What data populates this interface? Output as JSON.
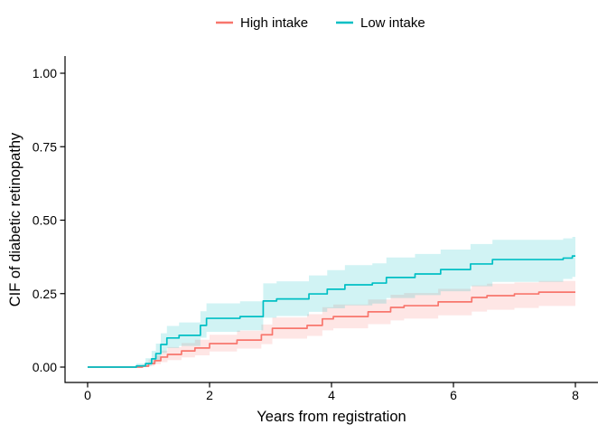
{
  "figure": {
    "background": "#ffffff",
    "legend": {
      "items": [
        {
          "label": "High intake",
          "color": "#F8766D"
        },
        {
          "label": "Low intake",
          "color": "#00BFC4"
        }
      ]
    },
    "axes": {
      "x": {
        "title": "Years from registration",
        "tick_labels": [
          "0",
          "2",
          "4",
          "6",
          "8"
        ],
        "tick_values": [
          0,
          2,
          4,
          6,
          8
        ],
        "range": [
          0,
          8.1
        ]
      },
      "y": {
        "title": "CIF of diabetic retinopathy",
        "tick_labels": [
          "0.00",
          "0.25",
          "0.50",
          "0.75",
          "1.00"
        ],
        "tick_values": [
          0,
          0.25,
          0.5,
          0.75,
          1
        ],
        "range": [
          0,
          1.05
        ]
      }
    }
  },
  "chart_data": {
    "type": "line",
    "subtype": "step-function-with-confidence-band",
    "title": "",
    "xlabel": "Years from registration",
    "ylabel": "CIF of diabetic retinopathy",
    "xlim": [
      0,
      8.1
    ],
    "ylim": [
      0,
      1.05
    ],
    "x_ticks": [
      0,
      2,
      4,
      6,
      8
    ],
    "y_ticks": [
      0,
      0.25,
      0.5,
      0.75,
      1.0
    ],
    "grid": false,
    "legend_position": "top",
    "x_end": 8.0,
    "series": [
      {
        "name": "High intake",
        "color": "#F8766D",
        "band_color": "rgba(248,118,109,0.18)",
        "points_format": [
          "t_years",
          "cif",
          "ci_lower",
          "ci_upper"
        ],
        "points": [
          [
            0.0,
            0.0,
            0.0,
            0.0
          ],
          [
            0.9,
            0.003,
            0.0,
            0.01
          ],
          [
            1.0,
            0.012,
            0.004,
            0.026
          ],
          [
            1.1,
            0.022,
            0.01,
            0.04
          ],
          [
            1.2,
            0.034,
            0.017,
            0.056
          ],
          [
            1.31,
            0.043,
            0.024,
            0.068
          ],
          [
            1.54,
            0.055,
            0.033,
            0.082
          ],
          [
            1.76,
            0.065,
            0.04,
            0.093
          ],
          [
            2.0,
            0.08,
            0.053,
            0.11
          ],
          [
            2.45,
            0.092,
            0.063,
            0.124
          ],
          [
            2.85,
            0.11,
            0.078,
            0.145
          ],
          [
            3.03,
            0.132,
            0.097,
            0.169
          ],
          [
            3.6,
            0.142,
            0.106,
            0.18
          ],
          [
            3.85,
            0.164,
            0.125,
            0.204
          ],
          [
            4.03,
            0.172,
            0.132,
            0.213
          ],
          [
            4.6,
            0.188,
            0.146,
            0.23
          ],
          [
            4.97,
            0.203,
            0.159,
            0.246
          ],
          [
            5.19,
            0.209,
            0.165,
            0.252
          ],
          [
            5.75,
            0.222,
            0.176,
            0.266
          ],
          [
            6.3,
            0.237,
            0.189,
            0.278
          ],
          [
            6.55,
            0.243,
            0.195,
            0.284
          ],
          [
            7.0,
            0.249,
            0.201,
            0.288
          ],
          [
            7.4,
            0.255,
            0.208,
            0.293
          ]
        ]
      },
      {
        "name": "Low intake",
        "color": "#00BFC4",
        "band_color": "rgba(0,191,196,0.18)",
        "points_format": [
          "t_years",
          "cif",
          "ci_lower",
          "ci_upper"
        ],
        "points": [
          [
            0.0,
            0.0,
            0.0,
            0.0
          ],
          [
            0.8,
            0.004,
            0.001,
            0.012
          ],
          [
            0.95,
            0.012,
            0.004,
            0.03
          ],
          [
            1.05,
            0.028,
            0.012,
            0.055
          ],
          [
            1.12,
            0.046,
            0.024,
            0.08
          ],
          [
            1.2,
            0.077,
            0.048,
            0.115
          ],
          [
            1.3,
            0.099,
            0.065,
            0.14
          ],
          [
            1.5,
            0.108,
            0.072,
            0.152
          ],
          [
            1.85,
            0.142,
            0.1,
            0.19
          ],
          [
            1.95,
            0.166,
            0.12,
            0.217
          ],
          [
            2.5,
            0.172,
            0.125,
            0.224
          ],
          [
            2.88,
            0.225,
            0.168,
            0.285
          ],
          [
            3.1,
            0.232,
            0.174,
            0.292
          ],
          [
            3.63,
            0.249,
            0.188,
            0.312
          ],
          [
            3.93,
            0.265,
            0.2,
            0.33
          ],
          [
            4.22,
            0.28,
            0.21,
            0.347
          ],
          [
            4.67,
            0.286,
            0.216,
            0.353
          ],
          [
            4.9,
            0.305,
            0.235,
            0.373
          ],
          [
            5.37,
            0.317,
            0.245,
            0.385
          ],
          [
            5.79,
            0.332,
            0.258,
            0.4
          ],
          [
            6.28,
            0.351,
            0.275,
            0.419
          ],
          [
            6.64,
            0.366,
            0.29,
            0.433
          ],
          [
            7.8,
            0.371,
            0.3,
            0.438
          ],
          [
            7.95,
            0.378,
            0.307,
            0.443
          ]
        ]
      }
    ]
  }
}
